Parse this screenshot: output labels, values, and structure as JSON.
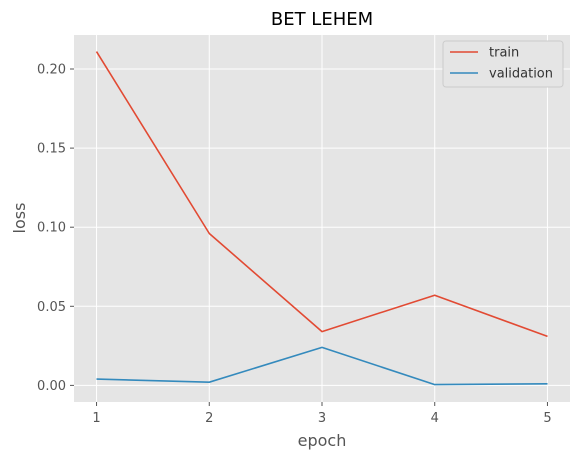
{
  "chart_data": {
    "type": "line",
    "title": "BET LEHEM",
    "xlabel": "epoch",
    "ylabel": "loss",
    "x": [
      1,
      2,
      3,
      4,
      5
    ],
    "xticks": [
      "1",
      "2",
      "3",
      "4",
      "5"
    ],
    "yticks": [
      "0.00",
      "0.05",
      "0.10",
      "0.15",
      "0.20"
    ],
    "ytick_values": [
      0.0,
      0.05,
      0.1,
      0.15,
      0.2
    ],
    "xlim": [
      0.8,
      5.2
    ],
    "ylim": [
      -0.0105,
      0.2215
    ],
    "grid": true,
    "legend_position": "top-right",
    "series": [
      {
        "name": "train",
        "color": "#E24A33",
        "values": [
          0.211,
          0.096,
          0.034,
          0.057,
          0.031
        ]
      },
      {
        "name": "validation",
        "color": "#348ABD",
        "values": [
          0.004,
          0.002,
          0.024,
          0.0005,
          0.001
        ]
      }
    ]
  }
}
